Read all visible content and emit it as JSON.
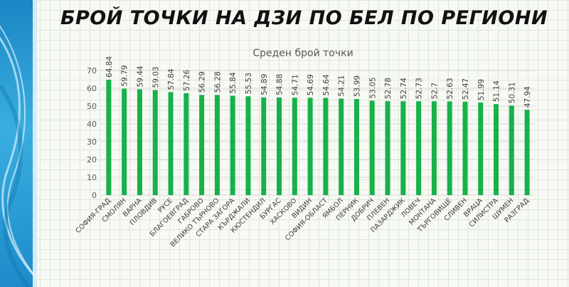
{
  "slide": {
    "title": "БРОЙ ТОЧКИ НА ДЗИ ПО БЕЛ ПО РЕГИОНИ"
  },
  "colors": {
    "bar": "#17b14a",
    "band": "#2fa3dc"
  },
  "chart_data": {
    "type": "bar",
    "title": "Среден брой точки",
    "xlabel": "",
    "ylabel": "",
    "ylim": [
      0,
      70
    ],
    "yticks": [
      0,
      10,
      20,
      30,
      40,
      50,
      60,
      70
    ],
    "grid": true,
    "legend": "none",
    "categories": [
      "СОФИЯ-ГРАД",
      "СМОЛЯН",
      "ВАРНА",
      "ПЛОВДИВ",
      "РУСЕ",
      "БЛАГОЕВГРАД",
      "ГАБРОВО",
      "ВЕЛИКО ТЪРНОВО",
      "СТАРА ЗАГОРА",
      "КЪРДЖАЛИ",
      "КЮСТЕНДИЛ",
      "БУРГАС",
      "ХАСКОВО",
      "ВИДИН",
      "СОФИЯ-ОБЛАСТ",
      "ЯМБОЛ",
      "ПЕРНИК",
      "ДОБРИЧ",
      "ПЛЕВЕН",
      "ПАЗАРДЖИК",
      "ЛОВЕЧ",
      "МОНТАНА",
      "ТЪРГОВИЩЕ",
      "СЛИВЕН",
      "ВРАЦА",
      "СИЛИСТРА",
      "ШУМЕН",
      "РАЗГРАД"
    ],
    "values": [
      64.84,
      59.79,
      59.44,
      59.03,
      57.84,
      57.26,
      56.29,
      56.28,
      55.84,
      55.53,
      54.89,
      54.88,
      54.71,
      54.69,
      54.64,
      54.21,
      53.99,
      53.05,
      52.78,
      52.74,
      52.73,
      52.7,
      52.63,
      52.47,
      51.99,
      51.14,
      50.31,
      47.94
    ],
    "data_labels": [
      "64.84",
      "59.79",
      "59.44",
      "59.03",
      "57.84",
      "57.26",
      "56.29",
      "56.28",
      "55.84",
      "55.53",
      "54.89",
      "54.88",
      "54.71",
      "54.69",
      "54.64",
      "54.21",
      "53.99",
      "53.05",
      "52.78",
      "52.74",
      "52.73",
      "52.7",
      "52.63",
      "52.47",
      "51.99",
      "51.14",
      "50.31",
      "47.94"
    ]
  }
}
